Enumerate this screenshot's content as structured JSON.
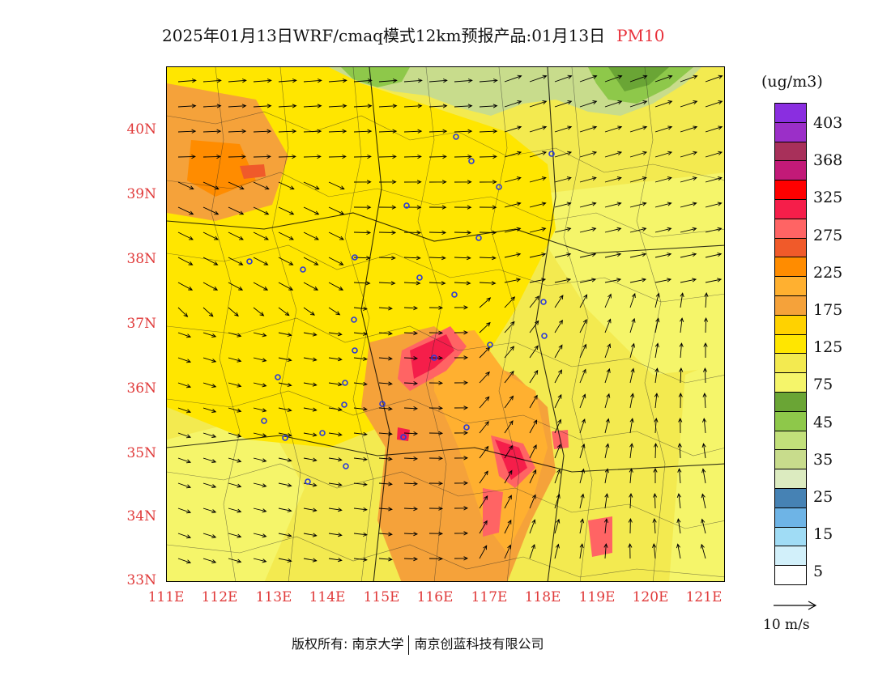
{
  "title": {
    "main": "2025年01月13日WRF/cmaq模式12km预报产品:01月13日",
    "pollutant": "PM10",
    "pollutant_color": "#e8303a"
  },
  "map": {
    "lat_labels": [
      "40N",
      "39N",
      "38N",
      "37N",
      "36N",
      "35N",
      "34N",
      "33N"
    ],
    "lon_labels": [
      "111E",
      "112E",
      "113E",
      "114E",
      "115E",
      "116E",
      "117E",
      "118E",
      "119E",
      "120E",
      "121E"
    ],
    "station_marker_color": "#2a3ad8",
    "base_color": "#f3ea50"
  },
  "legend": {
    "unit": "(ug/m3)",
    "colors": [
      "#8a2ee0",
      "#9b2fc8",
      "#a8305a",
      "#c21a78",
      "#ff0000",
      "#f51e4a",
      "#ff6464",
      "#f05a2a",
      "#ff8c00",
      "#ffb030",
      "#f5a23a",
      "#ffd200",
      "#ffe600",
      "#f3ea50",
      "#f5f56a",
      "#6aa535",
      "#8ec84a",
      "#c2e07a",
      "#c8dc8c",
      "#dcebc0",
      "#4682b4",
      "#6eb4e6",
      "#a0dcf5",
      "#d2f0fa",
      "#ffffff"
    ],
    "ticks": [
      "403",
      "368",
      "325",
      "275",
      "225",
      "175",
      "125",
      "75",
      "45",
      "35",
      "25",
      "15",
      "5"
    ]
  },
  "wind_reference": {
    "label": "10 m/s"
  },
  "footer": {
    "copyright_prefix": "版权所有: 南京大学",
    "copyright_suffix": "南京创蓝科技有限公司"
  }
}
